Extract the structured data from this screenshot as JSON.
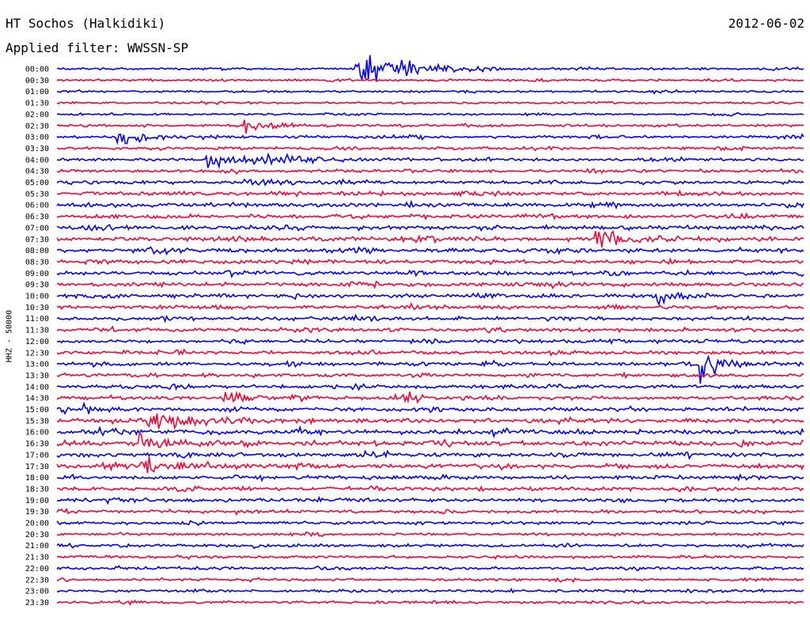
{
  "header": {
    "station": "HT Sochos (Halkidiki)",
    "date": "2012-06-02",
    "filter": "Applied filter: WWSSN-SP"
  },
  "chart_data": {
    "type": "line",
    "chart_kind": "helicorder",
    "title": "HT Sochos (Halkidiki)",
    "ylabel": "HHZ - 50000",
    "colors": {
      "even": "#0000ff",
      "odd": "#ff0033"
    },
    "rows": [
      "00:00",
      "00:30",
      "01:00",
      "01:30",
      "02:00",
      "02:30",
      "03:00",
      "03:30",
      "04:00",
      "04:30",
      "05:00",
      "05:30",
      "06:00",
      "06:30",
      "07:00",
      "07:30",
      "08:00",
      "08:30",
      "09:00",
      "09:30",
      "10:00",
      "10:30",
      "11:00",
      "11:30",
      "12:00",
      "12:30",
      "13:00",
      "13:30",
      "14:00",
      "14:30",
      "15:00",
      "15:30",
      "16:00",
      "16:30",
      "17:00",
      "17:30",
      "18:00",
      "18:30",
      "19:00",
      "19:30",
      "20:00",
      "20:30",
      "21:00",
      "21:30",
      "22:00",
      "22:30",
      "23:00",
      "23:30"
    ],
    "row_noise_level": [
      0.2,
      0.2,
      0.15,
      0.15,
      0.15,
      0.25,
      0.3,
      0.3,
      0.35,
      0.35,
      0.45,
      0.5,
      0.55,
      0.55,
      0.6,
      0.65,
      0.6,
      0.55,
      0.55,
      0.55,
      0.55,
      0.5,
      0.5,
      0.5,
      0.5,
      0.45,
      0.5,
      0.45,
      0.5,
      0.5,
      0.6,
      0.65,
      0.7,
      0.75,
      0.7,
      0.7,
      0.55,
      0.55,
      0.55,
      0.45,
      0.4,
      0.3,
      0.35,
      0.3,
      0.35,
      0.3,
      0.3,
      0.3
    ],
    "events": [
      {
        "row": "00:00",
        "pos": 0.4,
        "amp": 10,
        "dur": 0.05
      },
      {
        "row": "02:30",
        "pos": 0.25,
        "amp": 3,
        "dur": 0.03
      },
      {
        "row": "03:00",
        "pos": 0.08,
        "amp": 4,
        "dur": 0.03
      },
      {
        "row": "04:00",
        "pos": 0.2,
        "amp": 2.5,
        "dur": 0.08
      },
      {
        "row": "05:00",
        "pos": 0.25,
        "amp": 2,
        "dur": 0.03
      },
      {
        "row": "07:30",
        "pos": 0.72,
        "amp": 2.5,
        "dur": 0.05
      },
      {
        "row": "10:00",
        "pos": 0.8,
        "amp": 2,
        "dur": 0.03
      },
      {
        "row": "13:00",
        "pos": 0.86,
        "amp": 6,
        "dur": 0.03
      },
      {
        "row": "14:30",
        "pos": 0.22,
        "amp": 3,
        "dur": 0.03
      },
      {
        "row": "14:30",
        "pos": 0.45,
        "amp": 2.5,
        "dur": 0.03
      },
      {
        "row": "15:00",
        "pos": 0.03,
        "amp": 2,
        "dur": 0.02
      },
      {
        "row": "15:30",
        "pos": 0.12,
        "amp": 2.5,
        "dur": 0.06
      },
      {
        "row": "16:30",
        "pos": 0.11,
        "amp": 3,
        "dur": 0.04
      },
      {
        "row": "17:30",
        "pos": 0.11,
        "amp": 3.5,
        "dur": 0.04
      }
    ]
  }
}
